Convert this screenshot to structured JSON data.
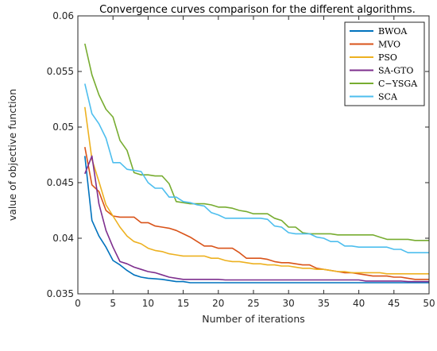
{
  "chart_data": {
    "type": "line",
    "title": "Convergence curves comparison for the different algorithms.",
    "xlabel": "Number of iterations",
    "ylabel": "value of objective function",
    "xlim": [
      0,
      50
    ],
    "ylim": [
      0.035,
      0.06
    ],
    "xticks": [
      0,
      5,
      10,
      15,
      20,
      25,
      30,
      35,
      40,
      45,
      50
    ],
    "yticks": [
      0.035,
      0.04,
      0.045,
      0.05,
      0.055,
      0.06
    ],
    "ytick_labels": [
      "0.035",
      "0.04",
      "0.045",
      "0.05",
      "0.055",
      "0.06"
    ],
    "grid": false,
    "legend_position": "top-right",
    "x": [
      1,
      2,
      3,
      4,
      5,
      6,
      7,
      8,
      9,
      10,
      11,
      12,
      13,
      14,
      15,
      16,
      17,
      18,
      19,
      20,
      21,
      22,
      23,
      24,
      25,
      26,
      27,
      28,
      29,
      30,
      31,
      32,
      33,
      34,
      35,
      36,
      37,
      38,
      39,
      40,
      41,
      42,
      43,
      44,
      45,
      46,
      47,
      48,
      49,
      50
    ],
    "series": [
      {
        "name": "BWOA",
        "color": "#0072BD",
        "values": [
          0.0474,
          0.0416,
          0.0402,
          0.0392,
          0.038,
          0.0376,
          0.0371,
          0.0367,
          0.0365,
          0.0364,
          0.03635,
          0.0363,
          0.0362,
          0.0361,
          0.0361,
          0.036,
          0.036,
          0.036,
          0.036,
          0.036,
          0.036,
          0.036,
          0.036,
          0.036,
          0.036,
          0.036,
          0.036,
          0.036,
          0.036,
          0.036,
          0.036,
          0.036,
          0.036,
          0.036,
          0.036,
          0.036,
          0.036,
          0.036,
          0.036,
          0.036,
          0.036,
          0.036,
          0.036,
          0.036,
          0.036,
          0.036,
          0.036,
          0.036,
          0.036,
          0.036
        ]
      },
      {
        "name": "MVO",
        "color": "#D95319",
        "values": [
          0.0482,
          0.0448,
          0.0442,
          0.0425,
          0.042,
          0.0419,
          0.0419,
          0.0419,
          0.0414,
          0.0414,
          0.0411,
          0.041,
          0.0409,
          0.0407,
          0.0404,
          0.0401,
          0.0397,
          0.0393,
          0.0393,
          0.0391,
          0.0391,
          0.0391,
          0.0387,
          0.0382,
          0.0382,
          0.0382,
          0.0381,
          0.0379,
          0.0378,
          0.0378,
          0.0377,
          0.0376,
          0.0376,
          0.0373,
          0.0372,
          0.0371,
          0.037,
          0.0369,
          0.0369,
          0.0368,
          0.0367,
          0.0366,
          0.0366,
          0.0366,
          0.0365,
          0.0365,
          0.0364,
          0.0363,
          0.0363,
          0.0363
        ]
      },
      {
        "name": "PSO",
        "color": "#EDB120",
        "values": [
          0.0518,
          0.0471,
          0.0451,
          0.043,
          0.042,
          0.041,
          0.0402,
          0.0397,
          0.0395,
          0.0391,
          0.0389,
          0.0388,
          0.0386,
          0.0385,
          0.0384,
          0.0384,
          0.0384,
          0.0384,
          0.0382,
          0.0382,
          0.038,
          0.0379,
          0.0379,
          0.0378,
          0.0377,
          0.0377,
          0.0376,
          0.0376,
          0.0375,
          0.0375,
          0.0374,
          0.0373,
          0.0373,
          0.0372,
          0.0372,
          0.0371,
          0.037,
          0.037,
          0.0369,
          0.0369,
          0.0369,
          0.0369,
          0.0369,
          0.0368,
          0.0368,
          0.0368,
          0.0368,
          0.0368,
          0.0368,
          0.0368
        ]
      },
      {
        "name": "SA-GTO",
        "color": "#7E2F8E",
        "values": [
          0.0458,
          0.0474,
          0.0431,
          0.0407,
          0.0392,
          0.0379,
          0.0377,
          0.0374,
          0.0372,
          0.037,
          0.0369,
          0.0367,
          0.0365,
          0.0364,
          0.0363,
          0.0363,
          0.0363,
          0.0363,
          0.0363,
          0.0363,
          0.03625,
          0.03625,
          0.03625,
          0.03625,
          0.03625,
          0.03625,
          0.03625,
          0.03625,
          0.03625,
          0.03625,
          0.03625,
          0.03625,
          0.03625,
          0.03625,
          0.03625,
          0.03625,
          0.03625,
          0.03625,
          0.03625,
          0.03625,
          0.03615,
          0.03615,
          0.03615,
          0.03615,
          0.03615,
          0.03615,
          0.0361,
          0.0361,
          0.0361,
          0.0361
        ]
      },
      {
        "name": "C−YSGA",
        "color": "#77AC30",
        "values": [
          0.0575,
          0.0547,
          0.0529,
          0.0516,
          0.0509,
          0.0488,
          0.0479,
          0.0459,
          0.0457,
          0.0457,
          0.0456,
          0.0456,
          0.0449,
          0.0433,
          0.0432,
          0.0431,
          0.0431,
          0.0431,
          0.043,
          0.0428,
          0.0428,
          0.0427,
          0.0425,
          0.0424,
          0.0422,
          0.0422,
          0.0422,
          0.0418,
          0.0416,
          0.041,
          0.041,
          0.0405,
          0.0404,
          0.0404,
          0.0404,
          0.0404,
          0.0403,
          0.0403,
          0.0403,
          0.0403,
          0.0403,
          0.0403,
          0.0401,
          0.0399,
          0.0399,
          0.0399,
          0.0399,
          0.0398,
          0.0398,
          0.0398
        ]
      },
      {
        "name": "SCA",
        "color": "#4DBEEE",
        "values": [
          0.0539,
          0.0512,
          0.0503,
          0.049,
          0.0468,
          0.0468,
          0.0462,
          0.0461,
          0.046,
          0.045,
          0.0445,
          0.0445,
          0.0437,
          0.0437,
          0.0433,
          0.0432,
          0.043,
          0.0429,
          0.0423,
          0.0421,
          0.0418,
          0.0418,
          0.0418,
          0.0418,
          0.0418,
          0.0418,
          0.0417,
          0.0411,
          0.041,
          0.0405,
          0.0404,
          0.0404,
          0.0404,
          0.0401,
          0.04,
          0.0397,
          0.0397,
          0.0393,
          0.0393,
          0.0392,
          0.0392,
          0.0392,
          0.0392,
          0.0392,
          0.039,
          0.039,
          0.0387,
          0.0387,
          0.0387,
          0.0387
        ]
      }
    ]
  }
}
